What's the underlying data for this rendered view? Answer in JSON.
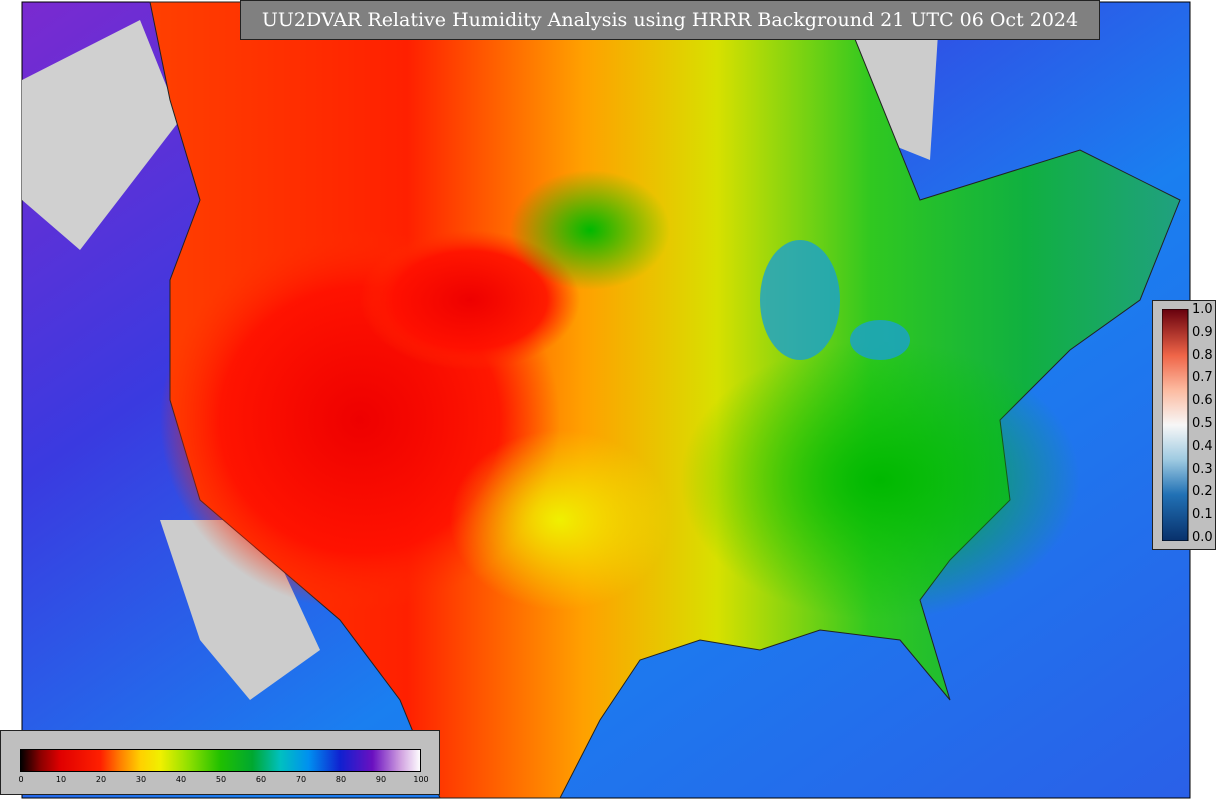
{
  "title": "UU2DVAR Relative Humidity Analysis using HRRR Background 21 UTC 06 Oct 2024",
  "humidity_colorbar": {
    "ticks": [
      0,
      10,
      20,
      30,
      40,
      50,
      60,
      70,
      80,
      90,
      100
    ]
  },
  "observation_colorbar": {
    "ticks": [
      "1.0",
      "0.9",
      "0.8",
      "0.7",
      "0.6",
      "0.5",
      "0.4",
      "0.3",
      "0.2",
      "0.1",
      "0.0"
    ]
  }
}
